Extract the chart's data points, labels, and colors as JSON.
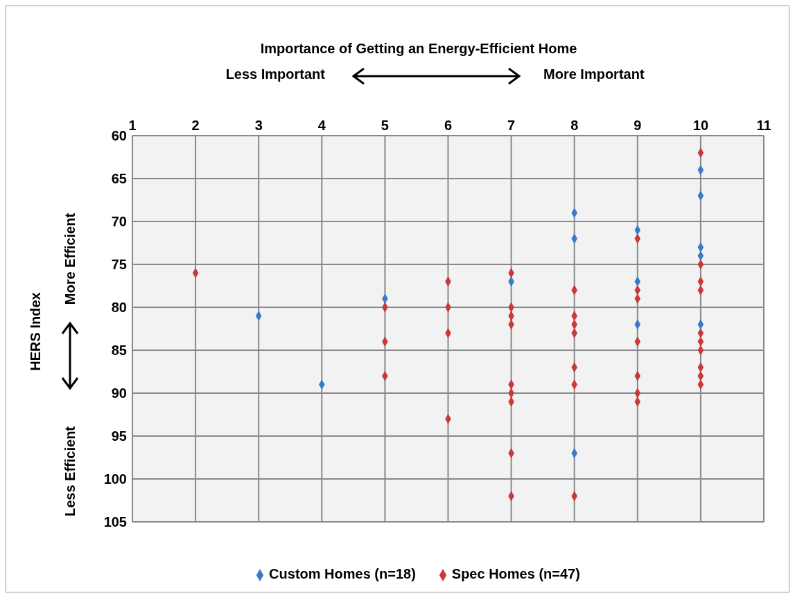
{
  "chart_data": {
    "type": "scatter",
    "xlabel": "Importance of Getting an Energy-Efficient Home",
    "ylabel": "HERS Index",
    "annotations": [
      "Less Important",
      "More Important",
      "More Efficient",
      "Less Efficient"
    ],
    "xlim": [
      1,
      11
    ],
    "xticks": [
      1,
      2,
      3,
      4,
      5,
      6,
      7,
      8,
      9,
      10,
      11
    ],
    "ylim": [
      105,
      60
    ],
    "yticks": [
      60,
      65,
      70,
      75,
      80,
      85,
      90,
      95,
      100,
      105
    ],
    "grid": true,
    "legend": "bottom",
    "marker": "diamond",
    "series": [
      {
        "name": "Custom Homes (n=18)",
        "color": "#3a7bc8",
        "x": [
          3,
          4,
          5,
          7,
          8,
          8,
          8,
          9,
          9,
          9,
          10,
          10,
          10,
          10,
          10
        ],
        "values": [
          81,
          89,
          79,
          77,
          69,
          72,
          97,
          71,
          77,
          82,
          64,
          67,
          73,
          74,
          82
        ]
      },
      {
        "name": "Spec Homes (n=47)",
        "color": "#c83a3a",
        "x": [
          2,
          5,
          5,
          5,
          6,
          6,
          6,
          6,
          7,
          7,
          7,
          7,
          7,
          7,
          7,
          7,
          7,
          8,
          8,
          8,
          8,
          8,
          8,
          8,
          9,
          9,
          9,
          9,
          9,
          9,
          9,
          10,
          10,
          10,
          10,
          10,
          10,
          10,
          10,
          10,
          10
        ],
        "values": [
          76,
          80,
          84,
          88,
          77,
          80,
          83,
          93,
          76,
          80,
          81,
          82,
          89,
          90,
          91,
          97,
          102,
          78,
          81,
          82,
          83,
          87,
          89,
          102,
          72,
          78,
          79,
          84,
          88,
          90,
          91,
          62,
          75,
          77,
          78,
          83,
          84,
          85,
          87,
          88,
          89
        ]
      }
    ]
  }
}
